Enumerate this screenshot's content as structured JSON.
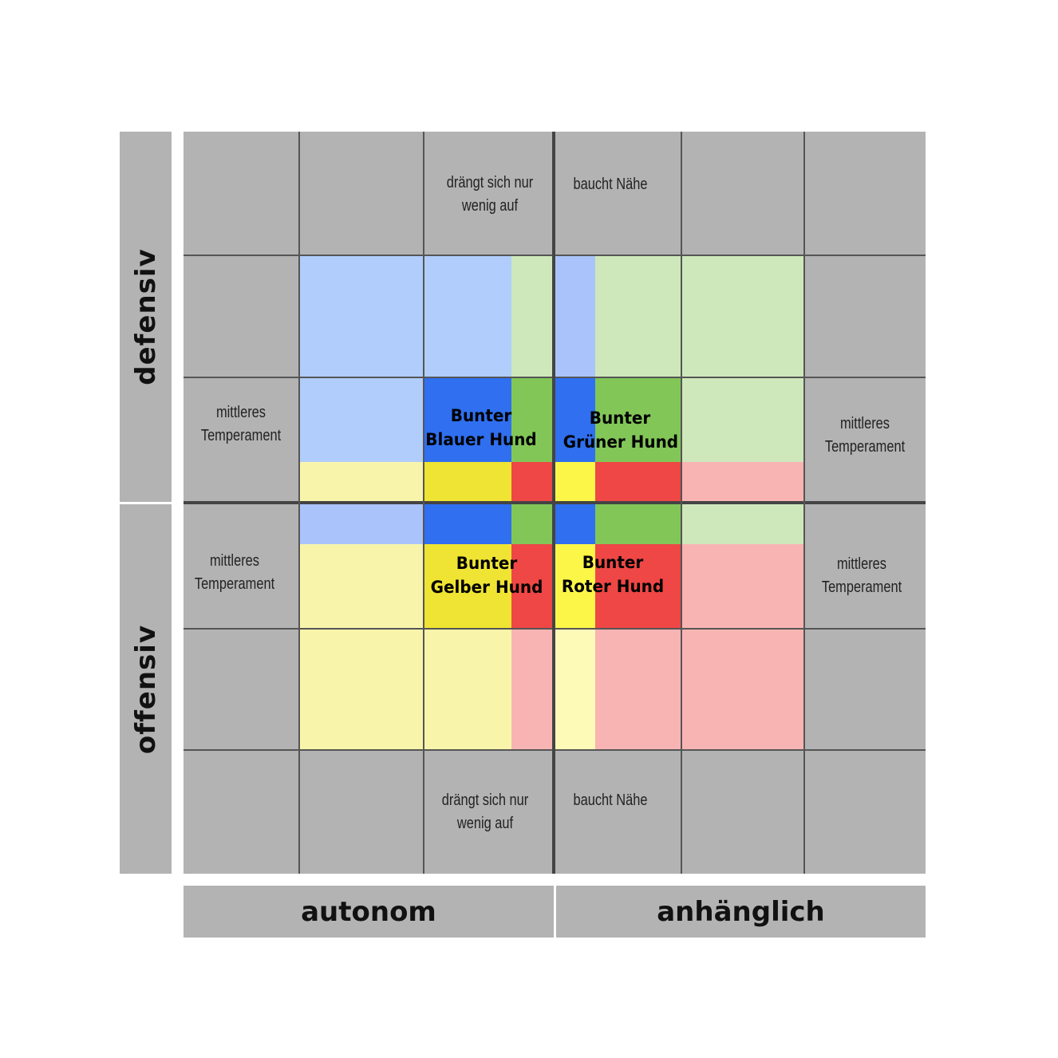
{
  "axes": {
    "left_top": "defensiv",
    "left_bottom": "offensiv",
    "bottom_left": "autonom",
    "bottom_right": "anhänglich"
  },
  "cells": {
    "top_left_mid_line1": "drängt sich nur",
    "top_left_mid_line2": "wenig auf",
    "top_right_mid": "baucht  Nähe",
    "bottom_left_mid_line1": "drängt sich nur",
    "bottom_left_mid_line2": "wenig auf",
    "bottom_right_mid": "baucht  Nähe",
    "left_upper_line1": "mittleres",
    "left_upper_line2": "Temperament",
    "left_lower_line1": "mittleres",
    "left_lower_line2": "Temperament",
    "right_upper_line1": "mittleres",
    "right_upper_line2": "Temperament",
    "right_lower_line1": "mittleres",
    "right_lower_line2": "Temperament"
  },
  "dogs": {
    "blue_line1": "Bunter",
    "blue_line2": "Blauer Hund",
    "green_line1": "Bunter",
    "green_line2": "Grüner Hund",
    "yellow_line1": "Bunter",
    "yellow_line2": "Gelber Hund",
    "red_line1": "Bunter",
    "red_line2": "Roter Hund"
  },
  "colors": {
    "gray": "#b3b3b3",
    "blue": "#2f6ff0",
    "blue_light": "#b0cdfb",
    "green": "#82c658",
    "green_light": "#cfe8bb",
    "yellow": "#efe433",
    "yellow_bright": "#fbf648",
    "yellow_light": "#f8f5ab",
    "red": "#ee4745",
    "red_light": "#f8b4b3"
  }
}
